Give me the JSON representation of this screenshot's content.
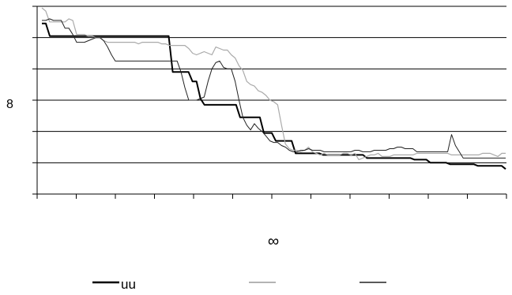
{
  "chart_data": {
    "type": "line",
    "title": "",
    "xlabel": "∞",
    "ylabel": "8",
    "ylim": [
      0,
      6
    ],
    "yticks": [
      0,
      1,
      2,
      3,
      4,
      5,
      6
    ],
    "x_tick_count": 12,
    "grid": true,
    "legend_position": "bottom",
    "series": [
      {
        "name": "uu",
        "color": "#000000",
        "width": 2,
        "values": [
          5.45,
          5.45,
          5.05,
          5.05,
          5.05,
          5.05,
          5.05,
          5.05,
          5.05,
          5.05,
          5.05,
          5.05,
          5.05,
          5.05,
          5.05,
          5.05,
          5.05,
          5.05,
          5.05,
          5.05,
          5.05,
          5.05,
          5.05,
          5.05,
          5.05,
          5.05,
          5.05,
          5.05,
          5.05,
          5.05,
          5.05,
          5.05,
          5.05,
          3.9,
          3.9,
          3.9,
          3.9,
          3.9,
          3.6,
          3.6,
          3.05,
          2.85,
          2.85,
          2.85,
          2.85,
          2.85,
          2.85,
          2.85,
          2.85,
          2.85,
          2.45,
          2.45,
          2.45,
          2.45,
          2.45,
          2.45,
          1.95,
          1.95,
          1.95,
          1.7,
          1.7,
          1.7,
          1.7,
          1.7,
          1.3,
          1.3,
          1.3,
          1.3,
          1.3,
          1.3,
          1.3,
          1.25,
          1.25,
          1.25,
          1.25,
          1.25,
          1.25,
          1.25,
          1.25,
          1.25,
          1.25,
          1.25,
          1.15,
          1.15,
          1.15,
          1.15,
          1.15,
          1.15,
          1.15,
          1.15,
          1.15,
          1.15,
          1.15,
          1.15,
          1.1,
          1.1,
          1.1,
          1.1,
          1.0,
          1.0,
          1.0,
          1.0,
          1.0,
          0.95,
          0.95,
          0.95,
          0.95,
          0.95,
          0.95,
          0.95,
          0.9,
          0.9,
          0.9,
          0.9,
          0.9,
          0.9,
          0.9,
          0.8
        ]
      },
      {
        "name": "",
        "color": "#aaaaaa",
        "width": 1.2,
        "values": [
          5.95,
          5.85,
          5.5,
          5.5,
          5.5,
          5.5,
          5.5,
          5.6,
          5.55,
          5.1,
          5.1,
          5.1,
          5.05,
          5.05,
          5.0,
          5.0,
          4.9,
          4.85,
          4.85,
          4.85,
          4.85,
          4.85,
          4.85,
          4.85,
          4.85,
          4.8,
          4.85,
          4.85,
          4.85,
          4.85,
          4.85,
          4.8,
          4.8,
          4.75,
          4.75,
          4.75,
          4.75,
          4.75,
          4.65,
          4.5,
          4.45,
          4.5,
          4.55,
          4.5,
          4.45,
          4.7,
          4.65,
          4.6,
          4.6,
          4.45,
          4.35,
          4.1,
          3.95,
          3.6,
          3.5,
          3.45,
          3.3,
          3.25,
          3.15,
          3.0,
          2.95,
          2.85,
          2.2,
          1.6,
          1.45,
          1.4,
          1.4,
          1.35,
          1.4,
          1.5,
          1.35,
          1.3,
          1.25,
          1.3,
          1.25,
          1.25,
          1.25,
          1.25,
          1.3,
          1.3,
          1.25,
          1.3,
          1.1,
          1.15,
          1.2,
          1.25,
          1.25,
          1.3,
          1.2,
          1.2,
          1.2,
          1.25,
          1.25,
          1.25,
          1.25,
          1.25,
          1.25,
          1.3,
          1.3,
          1.3,
          1.3,
          1.3,
          1.3,
          1.3,
          1.3,
          1.3,
          1.25,
          1.25,
          1.25,
          1.25,
          1.25,
          1.25,
          1.25,
          1.25,
          1.3,
          1.3,
          1.3,
          1.25,
          1.2,
          1.3,
          1.3
        ]
      },
      {
        "name": "",
        "color": "#222222",
        "width": 1,
        "values": [
          5.55,
          5.55,
          5.6,
          5.55,
          5.55,
          5.55,
          5.3,
          5.3,
          5.1,
          4.85,
          4.85,
          4.85,
          4.9,
          4.95,
          5.0,
          5.0,
          4.9,
          4.7,
          4.45,
          4.25,
          4.25,
          4.25,
          4.25,
          4.25,
          4.25,
          4.25,
          4.25,
          4.25,
          4.25,
          4.25,
          4.25,
          4.25,
          4.25,
          4.25,
          4.25,
          4.25,
          3.9,
          3.4,
          3.0,
          3.0,
          3.0,
          3.05,
          3.1,
          3.6,
          4.0,
          4.2,
          4.25,
          4.05,
          4.0,
          4.0,
          3.6,
          3.0,
          2.45,
          2.2,
          2.05,
          2.25,
          2.1,
          2.0,
          1.85,
          1.7,
          1.65,
          1.65,
          1.55,
          1.5,
          1.4,
          1.35,
          1.35,
          1.4,
          1.4,
          1.45,
          1.4,
          1.4,
          1.4,
          1.35,
          1.35,
          1.35,
          1.35,
          1.35,
          1.35,
          1.35,
          1.35,
          1.4,
          1.4,
          1.35,
          1.35,
          1.35,
          1.4,
          1.4,
          1.4,
          1.4,
          1.45,
          1.45,
          1.5,
          1.5,
          1.45,
          1.45,
          1.45,
          1.35,
          1.35,
          1.35,
          1.35,
          1.35,
          1.35,
          1.35,
          1.35,
          1.35,
          1.9,
          1.55,
          1.35,
          1.15,
          1.15,
          1.15,
          1.15,
          1.15,
          1.15,
          1.15,
          1.15,
          1.15,
          1.15,
          1.15,
          1.15
        ]
      }
    ]
  }
}
